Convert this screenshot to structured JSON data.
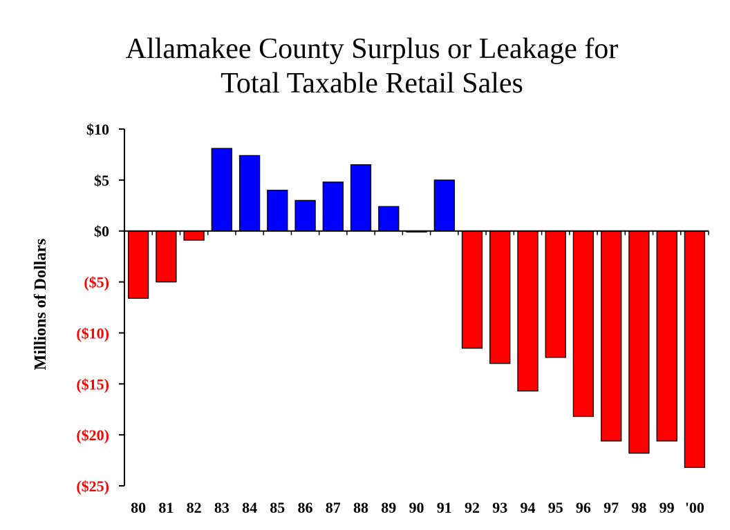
{
  "chart_data": {
    "type": "bar",
    "title_line1": "Allamakee County Surplus or Leakage for",
    "title_line2": "Total Taxable Retail Sales",
    "ylabel": "Millions of Dollars",
    "xlabel": "",
    "ylim": [
      -25,
      10
    ],
    "yticks": [
      10,
      5,
      0,
      -5,
      -10,
      -15,
      -20,
      -25
    ],
    "ytick_labels": [
      "$10",
      "$5",
      "$0",
      "($5)",
      "($10)",
      "($15)",
      "($20)",
      "($25)"
    ],
    "categories": [
      "80",
      "81",
      "82",
      "83",
      "84",
      "85",
      "86",
      "87",
      "88",
      "89",
      "90",
      "91",
      "92",
      "93",
      "94",
      "95",
      "96",
      "97",
      "98",
      "99",
      "'00"
    ],
    "values": [
      -6.6,
      -5.0,
      -0.9,
      8.1,
      7.4,
      4.0,
      3.0,
      4.8,
      6.5,
      2.4,
      -0.1,
      5.0,
      -11.5,
      -13.0,
      -15.7,
      -12.4,
      -18.2,
      -20.6,
      -21.8,
      -20.6,
      -23.2
    ],
    "colors": {
      "positive": "#0000ff",
      "negative": "#ff0000",
      "positive_label": "#000000",
      "negative_label": "#ff0000"
    },
    "grid": false
  }
}
